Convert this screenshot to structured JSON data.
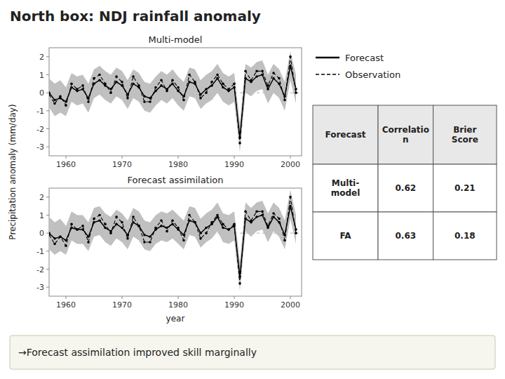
{
  "chart_data": [
    {
      "type": "line",
      "title": "North box: NDJ rainfall anomaly",
      "subtitle": "Multi-model",
      "ylabel": "Precipitation anomaly (mm/day)",
      "annotations": [
        "→Forecast assimilation improved skill marginally"
      ],
      "legend": "right",
      "x": [
        1957,
        1958,
        1959,
        1960,
        1961,
        1962,
        1963,
        1964,
        1965,
        1966,
        1967,
        1968,
        1969,
        1970,
        1971,
        1972,
        1973,
        1974,
        1975,
        1976,
        1977,
        1978,
        1979,
        1980,
        1981,
        1982,
        1983,
        1984,
        1985,
        1986,
        1987,
        1988,
        1989,
        1990,
        1991,
        1992,
        1993,
        1994,
        1995,
        1996,
        1997,
        1998,
        1999,
        2000,
        2001
      ],
      "xlim": [
        1957,
        2002
      ],
      "xticks": [
        1960,
        1970,
        1980,
        1990,
        2000
      ],
      "ylim": [
        -3.5,
        2.5
      ],
      "yticks": [
        -3,
        -2,
        -1,
        0,
        1,
        2
      ],
      "spread": {
        "color": "#c0c0c0",
        "lower": [
          -0.8,
          -1.3,
          -1.1,
          -1.3,
          -0.5,
          -0.7,
          -0.6,
          -1.1,
          -0.3,
          -0.1,
          -0.4,
          -0.6,
          -0.2,
          -0.4,
          -0.9,
          -0.3,
          -0.5,
          -1.0,
          -1.1,
          -0.7,
          -0.4,
          -0.6,
          -0.3,
          -0.7,
          -1.0,
          -0.2,
          -0.3,
          -0.9,
          -0.6,
          -0.4,
          0.0,
          -0.5,
          -0.7,
          -0.5,
          -3.3,
          0.0,
          -0.2,
          0.1,
          0.2,
          -0.6,
          0.0,
          -0.3,
          -1.0,
          0.7,
          -0.6
        ],
        "upper": [
          0.8,
          0.5,
          0.7,
          0.3,
          1.1,
          0.9,
          1.0,
          0.5,
          1.3,
          1.5,
          1.2,
          1.0,
          1.4,
          1.2,
          0.7,
          1.3,
          1.1,
          0.6,
          0.5,
          0.9,
          1.2,
          1.0,
          1.3,
          0.9,
          0.6,
          1.4,
          1.3,
          0.7,
          1.0,
          1.2,
          1.6,
          1.1,
          0.9,
          1.1,
          -1.7,
          1.6,
          1.4,
          1.7,
          1.8,
          1.0,
          1.6,
          1.3,
          0.6,
          2.3,
          1.0
        ]
      },
      "series": [
        {
          "name": "Forecast",
          "color": "#000000",
          "line_style": "solid",
          "marker": "dot",
          "values": [
            0.0,
            -0.4,
            -0.3,
            -0.5,
            0.3,
            0.1,
            0.2,
            -0.3,
            0.5,
            0.7,
            0.4,
            0.2,
            0.6,
            0.4,
            -0.1,
            0.5,
            0.3,
            -0.2,
            -0.3,
            0.1,
            0.4,
            0.2,
            0.5,
            0.1,
            -0.2,
            0.6,
            0.5,
            -0.1,
            0.2,
            0.4,
            0.8,
            0.3,
            0.1,
            0.3,
            -2.5,
            0.8,
            0.6,
            0.9,
            1.0,
            0.2,
            0.8,
            0.5,
            -0.2,
            1.5,
            0.2
          ]
        },
        {
          "name": "Observation",
          "color": "#000000",
          "line_style": "dashed",
          "marker": "dot",
          "values": [
            -0.1,
            -0.6,
            -0.2,
            -0.7,
            0.5,
            0.2,
            0.4,
            -0.5,
            0.8,
            1.0,
            0.5,
            0.0,
            0.9,
            0.6,
            -0.3,
            0.9,
            0.4,
            -0.5,
            -0.5,
            0.3,
            0.7,
            0.1,
            0.7,
            0.3,
            -0.4,
            1.0,
            0.6,
            -0.3,
            0.0,
            0.6,
            1.0,
            0.5,
            0.2,
            0.5,
            -2.8,
            1.2,
            0.7,
            1.2,
            1.2,
            0.4,
            1.1,
            0.8,
            -0.4,
            2.0,
            0.0
          ]
        }
      ]
    },
    {
      "type": "line",
      "subtitle": "Forecast assimilation",
      "xlabel": "year",
      "x": [
        1957,
        1958,
        1959,
        1960,
        1961,
        1962,
        1963,
        1964,
        1965,
        1966,
        1967,
        1968,
        1969,
        1970,
        1971,
        1972,
        1973,
        1974,
        1975,
        1976,
        1977,
        1978,
        1979,
        1980,
        1981,
        1982,
        1983,
        1984,
        1985,
        1986,
        1987,
        1988,
        1989,
        1990,
        1991,
        1992,
        1993,
        1994,
        1995,
        1996,
        1997,
        1998,
        1999,
        2000,
        2001
      ],
      "xlim": [
        1957,
        2002
      ],
      "xticks": [
        1960,
        1970,
        1980,
        1990,
        2000
      ],
      "ylim": [
        -3.5,
        2.5
      ],
      "yticks": [
        -3,
        -2,
        -1,
        0,
        1,
        2
      ],
      "spread": {
        "color": "#c0c0c0",
        "lower": [
          -0.9,
          -1.2,
          -1.0,
          -1.2,
          -0.4,
          -0.6,
          -0.6,
          -1.0,
          -0.2,
          -0.1,
          -0.5,
          -0.7,
          -0.3,
          -0.5,
          -0.9,
          -0.2,
          -0.4,
          -0.9,
          -1.0,
          -0.6,
          -0.4,
          -0.5,
          -0.3,
          -0.6,
          -0.9,
          -0.1,
          -0.2,
          -0.8,
          -0.5,
          -0.3,
          0.1,
          -0.5,
          -0.6,
          -0.4,
          -3.2,
          0.1,
          -0.2,
          0.1,
          0.2,
          -0.5,
          0.1,
          -0.2,
          -0.9,
          0.8,
          -0.6
        ],
        "upper": [
          0.9,
          0.6,
          0.8,
          0.4,
          1.2,
          1.0,
          1.0,
          0.6,
          1.4,
          1.5,
          1.1,
          0.9,
          1.3,
          1.1,
          0.7,
          1.4,
          1.2,
          0.7,
          0.6,
          1.0,
          1.2,
          1.1,
          1.3,
          1.0,
          0.7,
          1.5,
          1.4,
          0.8,
          1.1,
          1.3,
          1.7,
          1.1,
          1.0,
          1.2,
          -1.6,
          1.7,
          1.4,
          1.7,
          1.8,
          1.1,
          1.7,
          1.4,
          0.7,
          2.4,
          1.0
        ]
      },
      "series": [
        {
          "color": "#000000",
          "line_style": "solid",
          "marker": "dot",
          "values": [
            0.0,
            -0.3,
            -0.2,
            -0.4,
            0.3,
            0.2,
            0.2,
            -0.2,
            0.6,
            0.7,
            0.3,
            0.1,
            0.5,
            0.3,
            -0.1,
            0.6,
            0.4,
            -0.1,
            -0.2,
            0.2,
            0.4,
            0.3,
            0.5,
            0.2,
            -0.1,
            0.7,
            0.6,
            0.0,
            0.3,
            0.5,
            0.9,
            0.3,
            0.2,
            0.4,
            -2.4,
            0.8,
            0.6,
            0.9,
            1.0,
            0.3,
            0.9,
            0.6,
            -0.1,
            1.5,
            0.2
          ]
        },
        {
          "color": "#000000",
          "line_style": "dashed",
          "marker": "dot",
          "values": [
            -0.1,
            -0.6,
            -0.2,
            -0.7,
            0.5,
            0.2,
            0.4,
            -0.5,
            0.8,
            1.0,
            0.5,
            0.0,
            0.9,
            0.6,
            -0.3,
            0.9,
            0.4,
            -0.5,
            -0.5,
            0.3,
            0.7,
            0.1,
            0.7,
            0.3,
            -0.4,
            1.0,
            0.6,
            -0.3,
            0.0,
            0.6,
            1.0,
            0.5,
            0.2,
            0.5,
            -2.8,
            1.2,
            0.7,
            1.2,
            1.2,
            0.4,
            1.1,
            0.8,
            -0.4,
            2.0,
            0.0
          ]
        }
      ]
    },
    {
      "type": "table",
      "columns": [
        "Forecast",
        "Correlatio\nn",
        "Brier\nScore"
      ],
      "rows": [
        [
          "Multi-\nmodel",
          "0.62",
          "0.21"
        ],
        [
          "FA",
          "0.63",
          "0.18"
        ]
      ]
    }
  ]
}
